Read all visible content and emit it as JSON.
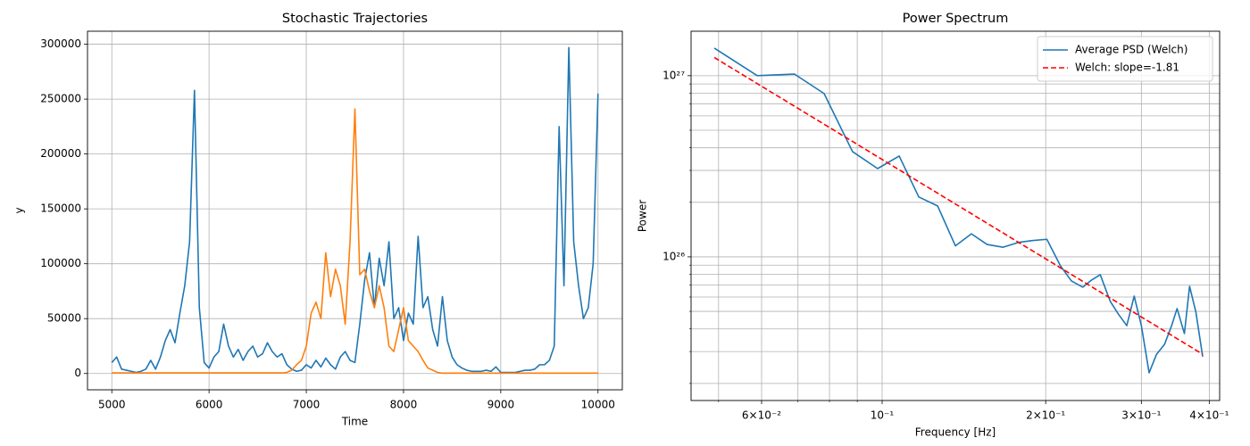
{
  "chart_data": [
    {
      "type": "line",
      "title": "Stochastic Trajectories",
      "xlabel": "Time",
      "ylabel": "y",
      "x": [
        5000,
        5050,
        5100,
        5150,
        5200,
        5250,
        5300,
        5350,
        5400,
        5450,
        5500,
        5550,
        5600,
        5650,
        5700,
        5750,
        5800,
        5850,
        5900,
        5950,
        6000,
        6050,
        6100,
        6150,
        6200,
        6250,
        6300,
        6350,
        6400,
        6450,
        6500,
        6550,
        6600,
        6650,
        6700,
        6750,
        6800,
        6850,
        6900,
        6950,
        7000,
        7050,
        7100,
        7150,
        7200,
        7250,
        7300,
        7350,
        7400,
        7450,
        7500,
        7550,
        7600,
        7650,
        7700,
        7750,
        7800,
        7850,
        7900,
        7950,
        8000,
        8050,
        8100,
        8150,
        8200,
        8250,
        8300,
        8350,
        8400,
        8450,
        8500,
        8550,
        8600,
        8650,
        8700,
        8750,
        8800,
        8850,
        8900,
        8950,
        9000,
        9050,
        9100,
        9150,
        9200,
        9250,
        9300,
        9350,
        9400,
        9450,
        9500,
        9550,
        9600,
        9650,
        9700,
        9750,
        9800,
        9850,
        9900,
        9950,
        10000
      ],
      "series": [
        {
          "color": "#1f77b4",
          "values": [
            10000,
            15000,
            4000,
            3000,
            2000,
            1000,
            2000,
            4000,
            12000,
            4000,
            15000,
            30000,
            40000,
            28000,
            55000,
            80000,
            120000,
            258000,
            60000,
            10000,
            5000,
            15000,
            20000,
            45000,
            25000,
            15000,
            22000,
            12000,
            20000,
            25000,
            15000,
            18000,
            28000,
            20000,
            15000,
            18000,
            8000,
            4000,
            2000,
            3000,
            8000,
            5000,
            12000,
            6000,
            14000,
            8000,
            4000,
            15000,
            20000,
            12000,
            10000,
            45000,
            85000,
            110000,
            60000,
            105000,
            80000,
            120000,
            50000,
            60000,
            30000,
            55000,
            45000,
            125000,
            60000,
            70000,
            40000,
            25000,
            70000,
            30000,
            15000,
            8000,
            5000,
            3000,
            2000,
            2000,
            2000,
            3000,
            2000,
            6000,
            1000,
            1000,
            1000,
            1000,
            2000,
            3000,
            3000,
            4000,
            8000,
            8000,
            12000,
            25000,
            225000,
            80000,
            297000,
            120000,
            80000,
            50000,
            60000,
            100000,
            255000
          ]
        },
        {
          "color": "#ff7f0e",
          "values": [
            500,
            500,
            500,
            500,
            500,
            500,
            500,
            500,
            500,
            500,
            500,
            500,
            500,
            500,
            500,
            500,
            500,
            500,
            500,
            500,
            500,
            500,
            500,
            500,
            500,
            500,
            500,
            500,
            500,
            500,
            500,
            500,
            500,
            500,
            500,
            500,
            1000,
            3000,
            8000,
            12000,
            25000,
            55000,
            65000,
            50000,
            110000,
            70000,
            95000,
            80000,
            45000,
            120000,
            241000,
            90000,
            95000,
            75000,
            60000,
            80000,
            60000,
            25000,
            20000,
            40000,
            60000,
            30000,
            25000,
            20000,
            12000,
            5000,
            3000,
            1000,
            300,
            300,
            300,
            300,
            300,
            300,
            300,
            300,
            300,
            300,
            300,
            300,
            300,
            300,
            300,
            300,
            300,
            300,
            300,
            300,
            300,
            300,
            300,
            300,
            300,
            300,
            300,
            300,
            300,
            300,
            300,
            300,
            300
          ]
        }
      ],
      "xlim": [
        4750,
        10250
      ],
      "xticks": [
        5000,
        6000,
        7000,
        8000,
        9000,
        10000
      ],
      "ylim": [
        -14850,
        311850
      ],
      "yticks": [
        0,
        50000,
        100000,
        150000,
        200000,
        250000,
        300000
      ],
      "grid": true
    },
    {
      "type": "line",
      "title": "Power Spectrum",
      "xlabel": "Frequency [Hz]",
      "ylabel": "Power",
      "xscale": "log",
      "yscale": "log",
      "grid": true,
      "legend": "upper right",
      "series": [
        {
          "name": "Average PSD (Welch)",
          "color": "#1f77b4",
          "linestyle": "solid",
          "x": [
            0.0491,
            0.0589,
            0.069,
            0.0782,
            0.0882,
            0.0981,
            0.1075,
            0.1168,
            0.1265,
            0.1364,
            0.146,
            0.156,
            0.167,
            0.178,
            0.189,
            0.201,
            0.213,
            0.223,
            0.234,
            0.243,
            0.252,
            0.263,
            0.272,
            0.282,
            0.291,
            0.3,
            0.31,
            0.32,
            0.331,
            0.341,
            0.349,
            0.36,
            0.368,
            0.378,
            0.389
          ],
          "values": [
            1.42e+27,
            1e+27,
            1.02e+27,
            7.97e+26,
            3.81e+26,
            3.07e+26,
            3.6e+26,
            2.14e+26,
            1.91e+26,
            1.15e+26,
            1.34e+26,
            1.17e+26,
            1.13e+26,
            1.2e+26,
            1.23e+26,
            1.25e+26,
            8.9e+25,
            7.36e+25,
            6.8e+25,
            7.45e+25,
            7.97e+25,
            5.67e+25,
            4.84e+25,
            4.17e+25,
            6.07e+25,
            4.17e+25,
            2.29e+25,
            2.9e+25,
            3.29e+25,
            4.17e+25,
            5.18e+25,
            3.77e+25,
            6.88e+25,
            4.95e+25,
            2.81e+25
          ]
        },
        {
          "name": "Welch: slope=-1.81",
          "color": "red",
          "linestyle": "dashed",
          "x": [
            0.0491,
            0.389
          ],
          "values": [
            1.26e+27,
            2.9e+25
          ]
        }
      ],
      "xlim": [
        0.0445,
        0.418
      ],
      "xticks": [
        {
          "value": 0.06,
          "label": "6×10⁻²"
        },
        {
          "value": 0.1,
          "label": "10⁻¹"
        },
        {
          "value": 0.2,
          "label": "2×10⁻¹"
        },
        {
          "value": 0.3,
          "label": "3×10⁻¹"
        },
        {
          "value": 0.4,
          "label": "4×10⁻¹"
        }
      ],
      "xminorticks": [
        0.05,
        0.07,
        0.08,
        0.09
      ],
      "ylim": [
        1.61e+25,
        1.76e+27
      ],
      "yticks": [
        {
          "value": 1e+26,
          "label": "10²⁶"
        },
        {
          "value": 1e+27,
          "label": "10²⁷"
        }
      ],
      "yminorticks": [
        2e+25,
        3e+25,
        4e+25,
        5e+25,
        6e+25,
        7e+25,
        8e+25,
        9e+25,
        2e+26,
        3e+26,
        4e+26,
        5e+26,
        6e+26,
        7e+26,
        8e+26,
        9e+26
      ]
    }
  ]
}
